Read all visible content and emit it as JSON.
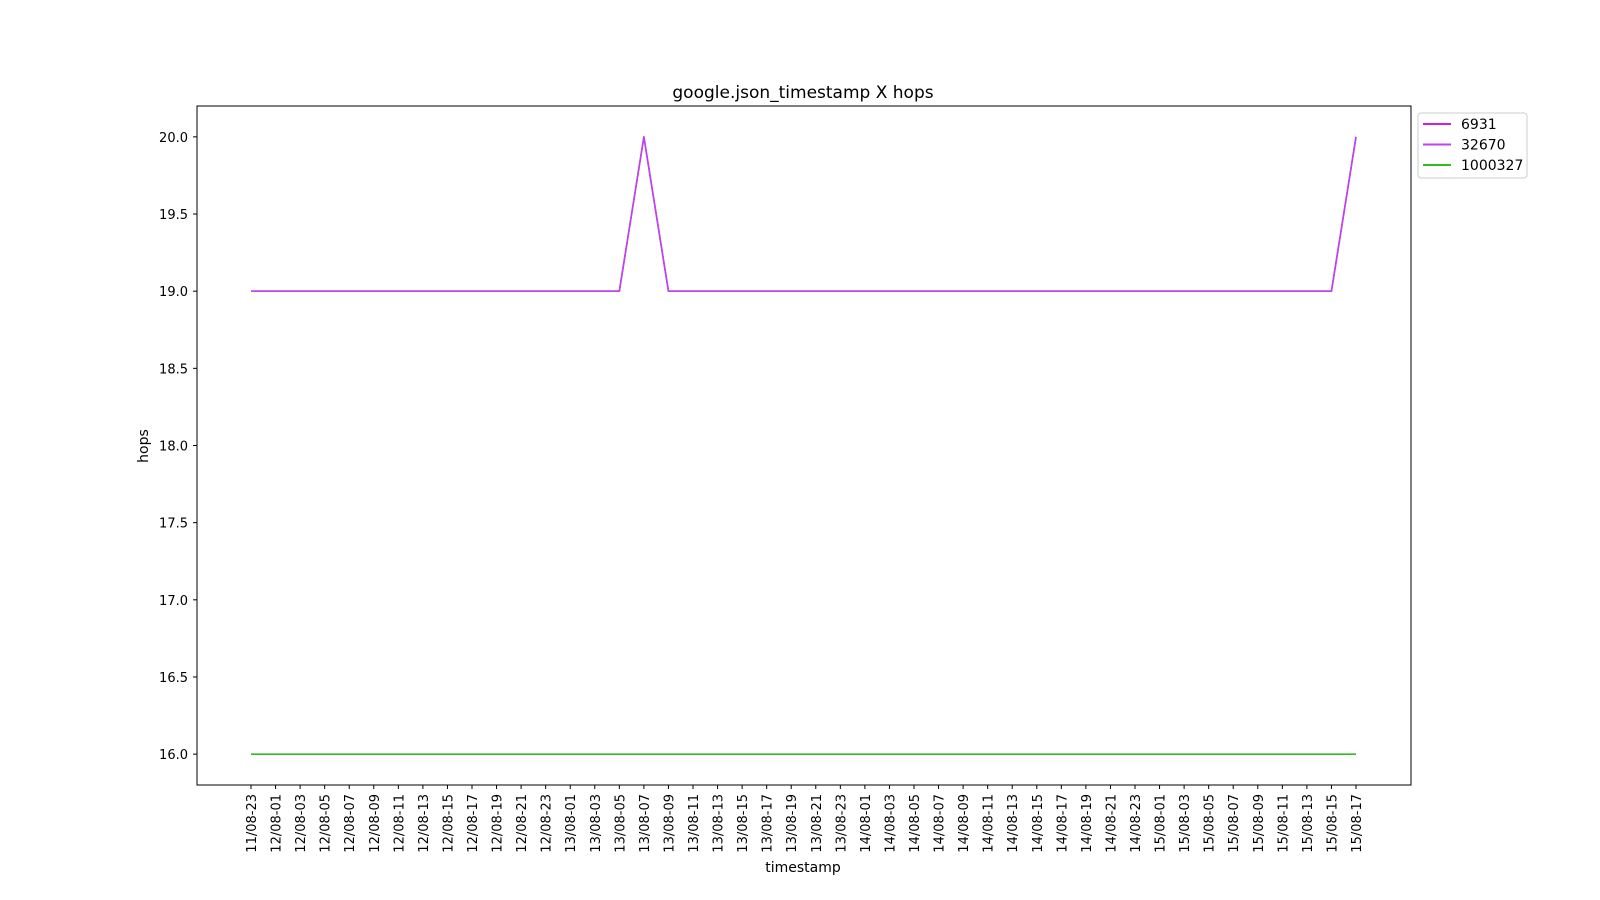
{
  "chart_data": {
    "type": "line",
    "title": "google.json_timestamp X hops",
    "xlabel": "timestamp",
    "ylabel": "hops",
    "ylim": [
      15.8,
      20.2
    ],
    "yticks": [
      "16.0",
      "16.5",
      "17.0",
      "17.5",
      "18.0",
      "18.5",
      "19.0",
      "19.5",
      "20.0"
    ],
    "grid": false,
    "legend_position": "outside top-right",
    "categories": [
      "11/08-23",
      "12/08-01",
      "12/08-03",
      "12/08-05",
      "12/08-07",
      "12/08-09",
      "12/08-11",
      "12/08-13",
      "12/08-15",
      "12/08-17",
      "12/08-19",
      "12/08-21",
      "12/08-23",
      "13/08-01",
      "13/08-03",
      "13/08-05",
      "13/08-07",
      "13/08-09",
      "13/08-11",
      "13/08-13",
      "13/08-15",
      "13/08-17",
      "13/08-19",
      "13/08-21",
      "13/08-23",
      "14/08-01",
      "14/08-03",
      "14/08-05",
      "14/08-07",
      "14/08-09",
      "14/08-11",
      "14/08-13",
      "14/08-15",
      "14/08-17",
      "14/08-19",
      "14/08-21",
      "14/08-23",
      "15/08-01",
      "15/08-03",
      "15/08-05",
      "15/08-07",
      "15/08-09",
      "15/08-11",
      "15/08-13",
      "15/08-15",
      "15/08-17"
    ],
    "series": [
      {
        "name": "6931",
        "color": "#cc22dd",
        "values": [
          19,
          19,
          19,
          19,
          19,
          19,
          19,
          19,
          19,
          19,
          19,
          19,
          19,
          19,
          19,
          19,
          20,
          19,
          19,
          19,
          19,
          19,
          19,
          19,
          19,
          19,
          19,
          19,
          19,
          19,
          19,
          19,
          19,
          19,
          19,
          19,
          19,
          19,
          19,
          19,
          19,
          19,
          19,
          19,
          19,
          20
        ]
      },
      {
        "name": "32670",
        "color": "#bb44ee",
        "values": [
          19,
          19,
          19,
          19,
          19,
          19,
          19,
          19,
          19,
          19,
          19,
          19,
          19,
          19,
          19,
          19,
          20,
          19,
          19,
          19,
          19,
          19,
          19,
          19,
          19,
          19,
          19,
          19,
          19,
          19,
          19,
          19,
          19,
          19,
          19,
          19,
          19,
          19,
          19,
          19,
          19,
          19,
          19,
          19,
          19,
          20
        ]
      },
      {
        "name": "1000327",
        "color": "#33bb22",
        "values": [
          16,
          16,
          16,
          16,
          16,
          16,
          16,
          16,
          16,
          16,
          16,
          16,
          16,
          16,
          16,
          16,
          16,
          16,
          16,
          16,
          16,
          16,
          16,
          16,
          16,
          16,
          16,
          16,
          16,
          16,
          16,
          16,
          16,
          16,
          16,
          16,
          16,
          16,
          16,
          16,
          16,
          16,
          16,
          16,
          16,
          16
        ]
      }
    ]
  }
}
